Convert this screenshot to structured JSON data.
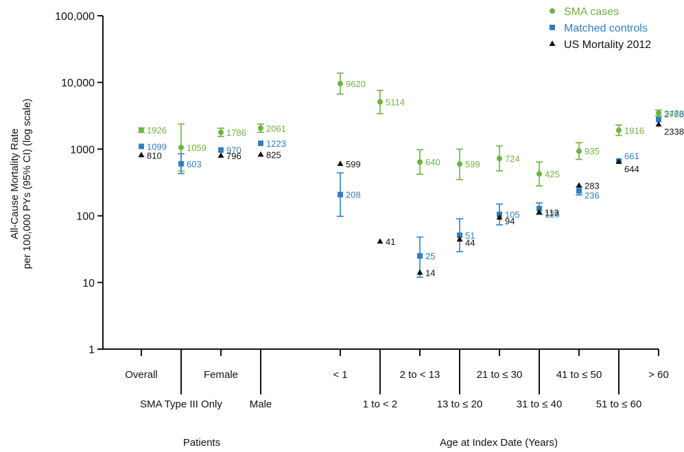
{
  "colors": {
    "sma": "#6db33f",
    "controls": "#2f7fc1",
    "us": "#111111",
    "axis": "#111111"
  },
  "chart_data": {
    "type": "scatter",
    "yscale": "log",
    "ylim": [
      1,
      100000
    ],
    "ylabel_line1": "All-Cause Mortality Rate",
    "ylabel_line2": "per 100,000 PYs (95% CI) (log scale)",
    "yticks": [
      {
        "value": 1,
        "label": "1"
      },
      {
        "value": 10,
        "label": "10"
      },
      {
        "value": 100,
        "label": "100"
      },
      {
        "value": 1000,
        "label": "1000"
      },
      {
        "value": 10000,
        "label": "10,000"
      },
      {
        "value": 100000,
        "label": "100,000"
      }
    ],
    "categories": [
      "Overall",
      "SMA Type III Only",
      "Female",
      "Male",
      "< 1",
      "1 to < 2",
      "2 to < 13",
      "13 to ≤ 20",
      "21 to ≤ 30",
      "31 to ≤ 40",
      "41 to ≤ 50",
      "51 to ≤ 60",
      "> 60"
    ],
    "group_labels": [
      "Patients",
      "Age at Index Date (Years)"
    ],
    "legend": {
      "position": "top-right",
      "items": [
        {
          "key": "sma",
          "label": "SMA cases",
          "marker": "circle"
        },
        {
          "key": "controls",
          "label": "Matched controls",
          "marker": "square"
        },
        {
          "key": "us",
          "label": "US Mortality 2012",
          "marker": "triangle"
        }
      ]
    },
    "series": [
      {
        "name": "SMA cases",
        "key": "sma",
        "points": [
          {
            "value": 1926,
            "label": "1926",
            "ci": [
              1780,
              2080
            ]
          },
          {
            "value": 1059,
            "label": "1059",
            "ci": [
              470,
              2380
            ]
          },
          {
            "value": 1786,
            "label": "1786",
            "ci": [
              1550,
              2060
            ]
          },
          {
            "value": 2061,
            "label": "2061",
            "ci": [
              1790,
              2370
            ]
          },
          {
            "value": 9620,
            "label": "9620",
            "ci": [
              6700,
              13800
            ]
          },
          {
            "value": 5114,
            "label": "5114",
            "ci": [
              3400,
              7600
            ]
          },
          {
            "value": 640,
            "label": "640",
            "ci": [
              420,
              980
            ]
          },
          {
            "value": 599,
            "label": "599",
            "ci": [
              350,
              1000
            ]
          },
          {
            "value": 724,
            "label": "724",
            "ci": [
              470,
              1120
            ]
          },
          {
            "value": 425,
            "label": "425",
            "ci": [
              280,
              640
            ]
          },
          {
            "value": 935,
            "label": "935",
            "ci": [
              700,
              1250
            ]
          },
          {
            "value": 1916,
            "label": "1916",
            "ci": [
              1600,
              2300
            ]
          },
          {
            "value": 3476,
            "label": "3476",
            "ci": [
              3150,
              3850
            ]
          }
        ]
      },
      {
        "name": "Matched controls",
        "key": "controls",
        "points": [
          {
            "value": 1099,
            "label": "1099",
            "ci": null
          },
          {
            "value": 603,
            "label": "603",
            "ci": [
              430,
              850
            ]
          },
          {
            "value": 970,
            "label": "970",
            "ci": null
          },
          {
            "value": 1223,
            "label": "1223",
            "ci": null
          },
          {
            "value": 208,
            "label": "208",
            "ci": [
              98,
              440
            ]
          },
          null,
          {
            "value": 25,
            "label": "25",
            "ci": [
              12,
              48
            ]
          },
          {
            "value": 51,
            "label": "51",
            "ci": [
              29,
              90
            ]
          },
          {
            "value": 105,
            "label": "105",
            "ci": [
              73,
              150
            ]
          },
          {
            "value": 128,
            "label": "128",
            "ci": [
              105,
              156
            ]
          },
          {
            "value": 236,
            "label": "236",
            "ci": [
              205,
              272
            ]
          },
          {
            "value": 661,
            "label": "661",
            "ci": null
          },
          {
            "value": 2788,
            "label": "2788",
            "ci": null
          }
        ]
      },
      {
        "name": "US Mortality 2012",
        "key": "us",
        "points": [
          {
            "value": 810,
            "label": "810"
          },
          null,
          {
            "value": 796,
            "label": "796"
          },
          {
            "value": 825,
            "label": "825"
          },
          {
            "value": 599,
            "label": "599"
          },
          {
            "value": 41,
            "label": "41"
          },
          {
            "value": 14,
            "label": "14"
          },
          {
            "value": 44,
            "label": "44"
          },
          {
            "value": 94,
            "label": "94"
          },
          {
            "value": 113,
            "label": "113"
          },
          {
            "value": 283,
            "label": "283"
          },
          {
            "value": 644,
            "label": "644"
          },
          {
            "value": 2338,
            "label": "2338"
          }
        ]
      }
    ]
  }
}
